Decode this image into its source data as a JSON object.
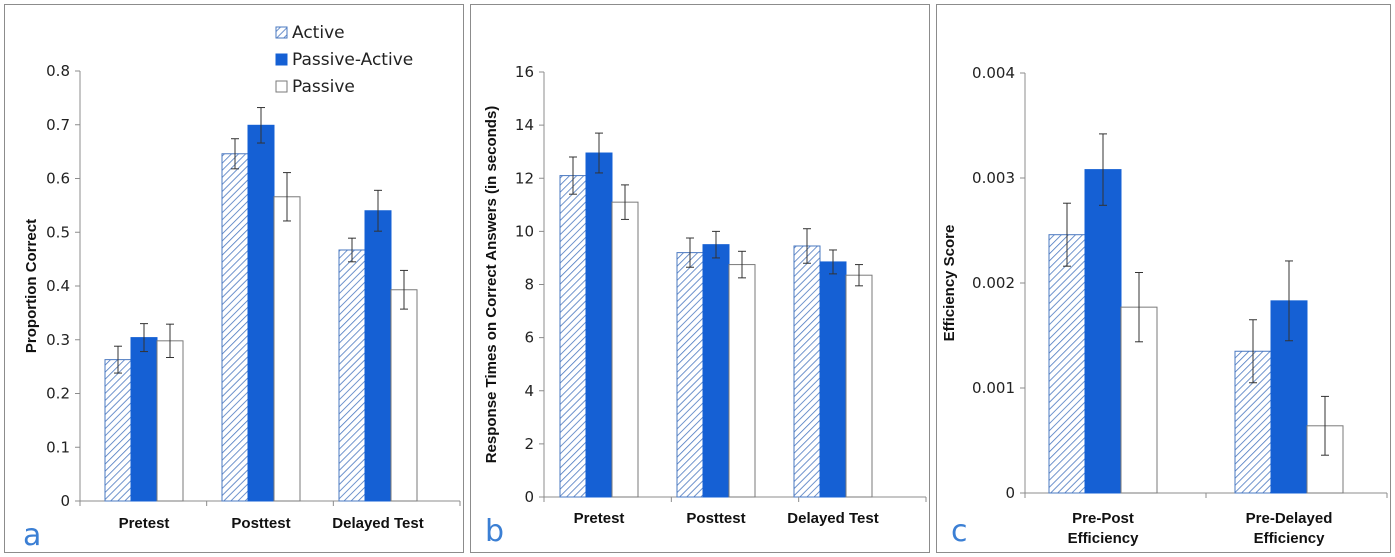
{
  "legend": {
    "items": [
      {
        "name": "Active",
        "style": "hatch"
      },
      {
        "name": "Passive-Active",
        "style": "blue"
      },
      {
        "name": "Passive",
        "style": "white"
      }
    ]
  },
  "colors": {
    "blue": "#1560d4",
    "hatch": "#4a78c0",
    "axis": "#8c8c8c",
    "panel_letter": "#3b7fd4"
  },
  "chart_data": [
    {
      "panel_label": "a",
      "type": "bar",
      "ylabel": "Proportion Correct",
      "ylim": [
        0,
        0.8
      ],
      "ytick_step": 0.1,
      "ytick_labels": [
        "0",
        "0.1",
        "0.2",
        "0.3",
        "0.4",
        "0.5",
        "0.6",
        "0.7",
        "0.8"
      ],
      "categories": [
        [
          "Pretest"
        ],
        [
          "Posttest"
        ],
        [
          "Delayed Test"
        ]
      ],
      "series": [
        {
          "name": "Active",
          "values": [
            0.263,
            0.646,
            0.467
          ],
          "errors": [
            0.025,
            0.028,
            0.022
          ]
        },
        {
          "name": "Passive-Active",
          "values": [
            0.304,
            0.699,
            0.54
          ],
          "errors": [
            0.026,
            0.033,
            0.038
          ]
        },
        {
          "name": "Passive",
          "values": [
            0.298,
            0.566,
            0.393
          ],
          "errors": [
            0.031,
            0.045,
            0.036
          ]
        }
      ],
      "legend_position": "top-right"
    },
    {
      "panel_label": "b",
      "type": "bar",
      "ylabel": "Response Times on Correct Answers (in seconds)",
      "ylim": [
        0,
        16
      ],
      "ytick_step": 2,
      "ytick_labels": [
        "0",
        "2",
        "4",
        "6",
        "8",
        "10",
        "12",
        "14",
        "16"
      ],
      "categories": [
        [
          "Pretest"
        ],
        [
          "Posttest"
        ],
        [
          "Delayed Test"
        ]
      ],
      "series": [
        {
          "name": "Active",
          "values": [
            12.1,
            9.2,
            9.45
          ],
          "errors": [
            0.7,
            0.55,
            0.65
          ]
        },
        {
          "name": "Passive-Active",
          "values": [
            12.95,
            9.5,
            8.85
          ],
          "errors": [
            0.75,
            0.5,
            0.45
          ]
        },
        {
          "name": "Passive",
          "values": [
            11.1,
            8.75,
            8.35
          ],
          "errors": [
            0.65,
            0.5,
            0.4
          ]
        }
      ]
    },
    {
      "panel_label": "c",
      "type": "bar",
      "ylabel": "Efficiency Score",
      "ylim": [
        0,
        0.004
      ],
      "ytick_step": 0.001,
      "ytick_labels": [
        "0",
        "0.001",
        "0.002",
        "0.003",
        "0.004"
      ],
      "categories": [
        [
          "Pre-Post",
          "Efficiency"
        ],
        [
          "Pre-Delayed",
          "Efficiency"
        ]
      ],
      "series": [
        {
          "name": "Active",
          "values": [
            0.00246,
            0.00135
          ],
          "errors": [
            0.0003,
            0.0003
          ]
        },
        {
          "name": "Passive-Active",
          "values": [
            0.00308,
            0.00183
          ],
          "errors": [
            0.00034,
            0.00038
          ]
        },
        {
          "name": "Passive",
          "values": [
            0.00177,
            0.00064
          ],
          "errors": [
            0.00033,
            0.00028
          ]
        }
      ]
    }
  ]
}
